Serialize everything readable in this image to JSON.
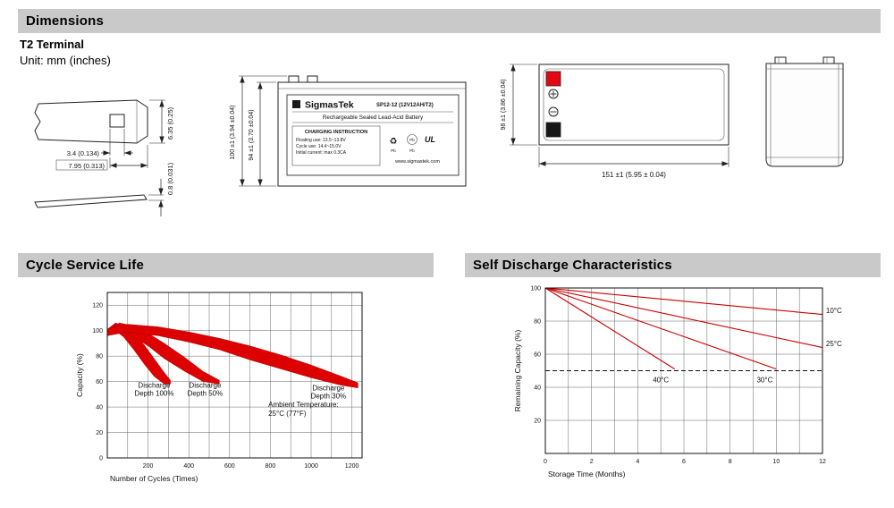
{
  "sections": {
    "dimensions": "Dimensions",
    "cycle_service_life": "Cycle Service Life",
    "self_discharge": "Self Discharge Characteristics"
  },
  "dimensions_panel": {
    "terminal_type": "T2 Terminal",
    "unit_note": "Unit: mm (inches)",
    "terminal_detail": {
      "tab_height": "6.35 (0.25)",
      "hole_width": "3.4 (0.134)",
      "tab_width": "7.95 (0.313)",
      "tab_thickness": "0.8 (0.031)"
    },
    "front_view": {
      "overall_height": "100 ±1 (3.94 ±0.04)",
      "container_height": "94 ±1 (3.70 ±0.04)",
      "label": {
        "brand": "SigmasTek",
        "model": "SP12-12 (12V12AH/T2)",
        "battery_type": "Rechargeable Sealed Lead-Acid Battery",
        "charging_title": "CHARGING INSTRUCTION",
        "charging_line1": "Floating use: 13.5~13.8V",
        "charging_line2": "Cycle use: 14.4~15.0V",
        "charging_line3": "Initial current: max 0.3CA",
        "recycle_symbol": "♻",
        "pb_circle": "Pb",
        "pb_label1": "Pb",
        "pb_label2": "Pb",
        "ul_mark": "UL",
        "website": "www.sigmastek.com"
      }
    },
    "top_view": {
      "width_dim": "98 ±1 (3.86 ±0.04)",
      "length_dim": "151 ±1 (5.95 ± 0.04)"
    }
  },
  "chart_data": [
    {
      "type": "area",
      "title": "Cycle Service Life",
      "xlabel": "Number of Cycles (Times)",
      "ylabel": "Capacity (%)",
      "xlim": [
        0,
        1250
      ],
      "ylim": [
        0,
        130
      ],
      "xticks": [
        200,
        400,
        600,
        800,
        1000,
        1200
      ],
      "yticks": [
        0,
        20,
        40,
        60,
        80,
        100,
        120
      ],
      "grid_x_step": 100,
      "grid_y_step": 20,
      "grid": true,
      "legend_position": "none",
      "band_color": "#dd0000",
      "bands": [
        {
          "name": "Discharge Depth 100%",
          "label_lines": [
            "Discharge",
            "Depth 100%"
          ],
          "label_x": 230,
          "label_y": 55,
          "x": [
            0,
            40,
            80,
            130,
            180,
            230,
            280,
            310
          ],
          "upper": [
            101,
            106,
            104,
            98,
            89,
            78,
            67,
            61
          ],
          "lower": [
            96,
            100,
            95,
            85,
            74,
            64,
            58,
            58
          ]
        },
        {
          "name": "Discharge Depth 50%",
          "label_lines": [
            "Discharge",
            "Depth 50%"
          ],
          "label_x": 480,
          "label_y": 55,
          "x": [
            0,
            60,
            120,
            200,
            280,
            380,
            470,
            550
          ],
          "upper": [
            101,
            106,
            104,
            98,
            90,
            79,
            68,
            61
          ],
          "lower": [
            96,
            100,
            96,
            88,
            78,
            68,
            60,
            58
          ]
        },
        {
          "name": "Discharge Depth 30%",
          "label_lines": [
            "Discharge",
            "Depth 30%"
          ],
          "label_x": 1085,
          "label_y": 53,
          "x": [
            0,
            100,
            250,
            400,
            550,
            700,
            850,
            1000,
            1150,
            1230
          ],
          "upper": [
            101,
            105,
            103,
            99,
            94,
            88,
            81,
            73,
            64,
            59
          ],
          "lower": [
            96,
            99,
            96,
            91,
            85,
            77,
            70,
            63,
            57,
            55
          ]
        }
      ],
      "annotation": {
        "lines": [
          "Ambient Temperature:",
          "25°C (77°F)"
        ],
        "x": 790,
        "y": 40
      }
    },
    {
      "type": "line",
      "title": "Self Discharge Characteristics",
      "xlabel": "Storage Time (Months)",
      "ylabel": "Remaining Capacity (%)",
      "xlim": [
        0,
        12
      ],
      "ylim": [
        0,
        100
      ],
      "xticks": [
        0,
        2,
        4,
        6,
        8,
        10,
        12
      ],
      "yticks": [
        20,
        40,
        60,
        80,
        100
      ],
      "grid_x_step": 1,
      "grid_y_step": 20,
      "grid": true,
      "legend_position": "inline-labels",
      "line_color": "#cc0000",
      "dashed_y": 50,
      "series": [
        {
          "name": "10°C",
          "x": [
            0,
            12
          ],
          "y": [
            100,
            84
          ],
          "label_x": 12.15,
          "label_y": 85,
          "anchor": "start"
        },
        {
          "name": "25°C",
          "x": [
            0,
            12
          ],
          "y": [
            100,
            64
          ],
          "label_x": 12.15,
          "label_y": 65,
          "anchor": "start"
        },
        {
          "name": "30°C",
          "x": [
            0,
            10
          ],
          "y": [
            100,
            51
          ],
          "label_x": 9.5,
          "label_y": 43,
          "anchor": "middle"
        },
        {
          "name": "40°C",
          "x": [
            0,
            5.6
          ],
          "y": [
            100,
            51
          ],
          "label_x": 5.0,
          "label_y": 43,
          "anchor": "middle"
        }
      ]
    }
  ]
}
